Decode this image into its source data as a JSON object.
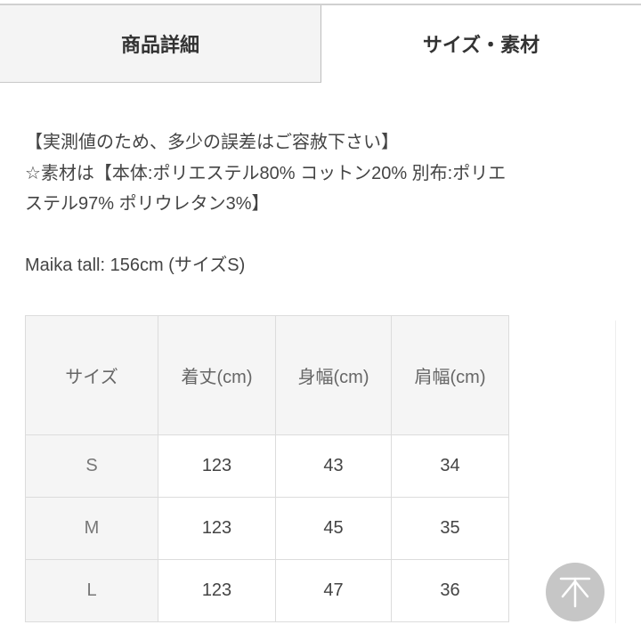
{
  "tabs": [
    {
      "label": "商品詳細",
      "active": false
    },
    {
      "label": "サイズ・素材",
      "active": true
    }
  ],
  "description": {
    "lines": [
      "【実測値のため、多少の誤差はご容赦下さい】",
      "☆素材は【本体:ポリエステル80% コットン20% 別布:ポリエ",
      "ステル97% ポリウレタン3%】"
    ],
    "model": "Maika tall: 156cm (サイズS)"
  },
  "size_table": {
    "headers": [
      "サイズ",
      "着丈(cm)",
      "身幅(cm)",
      "肩幅(cm)"
    ],
    "rows": [
      [
        "S",
        "123",
        "43",
        "34"
      ],
      [
        "M",
        "123",
        "45",
        "35"
      ],
      [
        "L",
        "123",
        "47",
        "36"
      ]
    ]
  },
  "scroll_top_button": {
    "icon": "arrow-up-to-top-icon"
  }
}
